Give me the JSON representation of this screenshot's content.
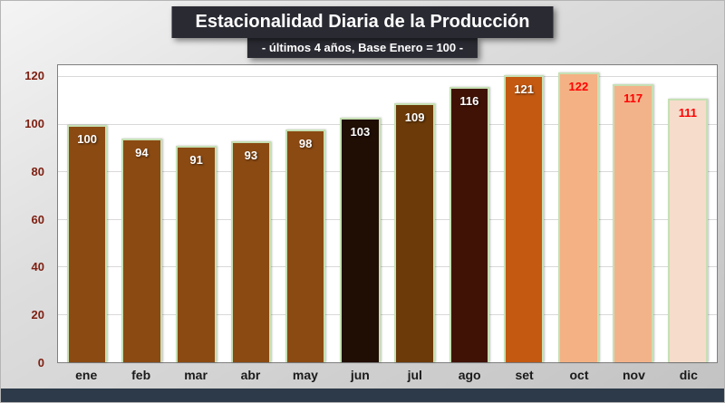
{
  "title": "Estacionalidad Diaria de la Producción",
  "subtitle": "- últimos 4 años, Base Enero = 100 -",
  "chart_data": {
    "type": "bar",
    "title": "Estacionalidad Diaria de la Producción",
    "subtitle": "- últimos 4 años, Base Enero = 100 -",
    "categories": [
      "ene",
      "feb",
      "mar",
      "abr",
      "may",
      "jun",
      "jul",
      "ago",
      "set",
      "oct",
      "nov",
      "dic"
    ],
    "values": [
      100,
      94,
      91,
      93,
      98,
      103,
      109,
      116,
      121,
      122,
      117,
      111
    ],
    "bar_colors": [
      "#8B4A12",
      "#8B4A12",
      "#8B4A12",
      "#8B4A12",
      "#8B4A12",
      "#200D04",
      "#6B3A08",
      "#401205",
      "#C45911",
      "#F4B183",
      "#F3B38A",
      "#F6DCCB"
    ],
    "label_colors": [
      "#FFFFFF",
      "#FFFFFF",
      "#FFFFFF",
      "#FFFFFF",
      "#FFFFFF",
      "#FFFFFF",
      "#FFFFFF",
      "#FFFFFF",
      "#FFFFFF",
      "#FF0000",
      "#FF0000",
      "#FF0000"
    ],
    "bar_border_color": "#C6E0B4",
    "yticks": [
      0,
      20,
      40,
      60,
      80,
      100,
      120
    ],
    "ylim": [
      0,
      125
    ],
    "grid": true,
    "legend": false,
    "xlabel": "",
    "ylabel": ""
  },
  "colors": {
    "title_bg": "#2A2A33",
    "footer_bg": "#2D3A49",
    "ytick_color": "#7E2012",
    "gridline": "#D9D9D9",
    "plot_border": "#7F7F7F"
  }
}
